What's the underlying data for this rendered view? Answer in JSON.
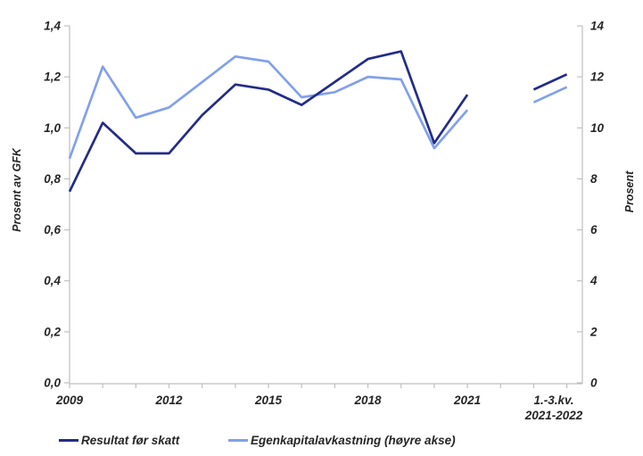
{
  "chart_data": {
    "type": "line",
    "x_years": [
      2009,
      2010,
      2011,
      2012,
      2013,
      2014,
      2015,
      2016,
      2017,
      2018,
      2019,
      2020,
      2021
    ],
    "x_axis_labeled_years": [
      "2009",
      "2012",
      "2015",
      "2018",
      "2021"
    ],
    "extra_period": {
      "label_line1": "1.-3.kv.",
      "label_line2": "2021-2022"
    },
    "left_axis": {
      "label": "Prosent av GFK",
      "min": 0,
      "max": 1.4,
      "tick_labels": [
        "0,0",
        "0,2",
        "0,4",
        "0,6",
        "0,8",
        "1,0",
        "1,2",
        "1,4"
      ]
    },
    "right_axis": {
      "label": "Prosent",
      "min": 0,
      "max": 14,
      "tick_labels": [
        "0",
        "2",
        "4",
        "6",
        "8",
        "10",
        "12",
        "14"
      ]
    },
    "grid": false,
    "legend_position": "bottom",
    "series": [
      {
        "name": "Resultat før skatt",
        "axis": "left",
        "color": "#232C87",
        "values": [
          0.75,
          1.02,
          0.9,
          0.9,
          1.05,
          1.17,
          1.15,
          1.09,
          1.18,
          1.27,
          1.3,
          0.94,
          1.13
        ],
        "extra_values": [
          1.15,
          1.21
        ]
      },
      {
        "name": "Egenkapitalavkastning (høyre akse)",
        "axis": "right",
        "color": "#82A0EB",
        "values": [
          8.8,
          12.4,
          10.4,
          10.8,
          11.8,
          12.8,
          12.6,
          11.2,
          11.4,
          12.0,
          11.9,
          9.2,
          10.7
        ],
        "extra_values": [
          11.0,
          11.6
        ]
      }
    ]
  },
  "colors": {
    "axis_line": "#BFBFBF",
    "tick_mark": "#BFBFBF",
    "label_text": "#262626"
  }
}
